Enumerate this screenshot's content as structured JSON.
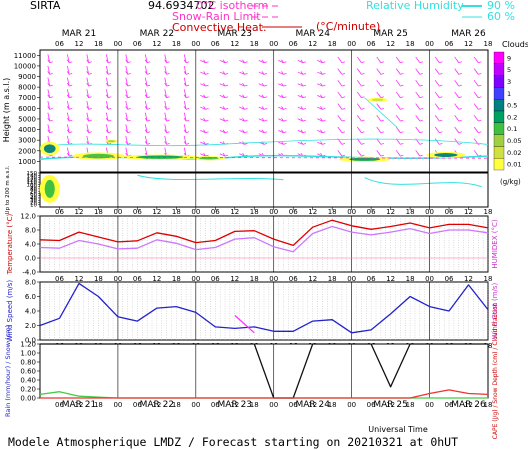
{
  "header": {
    "site": "SIRTA",
    "coords": "94.6934702",
    "legend_left": [
      {
        "label": "0°C isotherm",
        "color": "#ff33cc",
        "style": "--"
      },
      {
        "label": "Snow-Rain Limit",
        "color": "#ff33cc",
        "style": "--"
      },
      {
        "label": "Convective Heat.",
        "color": "#cc0000",
        "style": "solid"
      },
      {
        "label": "(°C/minute)",
        "color": "#cc0000",
        "style": ""
      }
    ],
    "legend_right": [
      {
        "label": "Relative Humidity",
        "value": "90 %",
        "color": "#33e0e0"
      },
      {
        "label": "",
        "value": "60 %",
        "color": "#33e0e0"
      }
    ]
  },
  "footer": {
    "title": "Modele Atmospherique LMDZ / Forecast starting on 20210321 at 0hUT",
    "xlabel": "Universal Time"
  },
  "time_axis": {
    "days": [
      "MAR 21",
      "MAR 22",
      "MAR 23",
      "MAR 24",
      "MAR 25",
      "MAR 26"
    ],
    "hour_ticks": [
      "06",
      "12",
      "18",
      "00"
    ],
    "start_hour": 0,
    "end_hour": 138
  },
  "colorbar": {
    "title": "Clouds",
    "unit": "(g/kg)",
    "labels": [
      "9",
      "5",
      "3",
      "1",
      "0.5",
      "0.2",
      "0.1",
      "0.05",
      "0.02",
      "0.01"
    ],
    "colors": [
      "#ff00ff",
      "#c000ff",
      "#8000ff",
      "#4040ff",
      "#008080",
      "#00a060",
      "#40c040",
      "#a0d040",
      "#d0e040",
      "#ffff40"
    ]
  },
  "chart_data": [
    {
      "type": "heatmap",
      "name": "clouds_wind",
      "ylabel": "Height (m a.s.l.)",
      "yticks": [
        1000,
        2000,
        3000,
        4000,
        5000,
        6000,
        7000,
        8000,
        9000,
        10000,
        11000
      ],
      "ylim": [
        0,
        11500
      ],
      "cloud_blobs": [
        {
          "t": 3,
          "h": 2200,
          "dt": 3,
          "dh": 1300,
          "level": 0.5
        },
        {
          "t": 18,
          "h": 1500,
          "dt": 8,
          "dh": 700,
          "level": 0.1
        },
        {
          "t": 22,
          "h": 2900,
          "dt": 2,
          "dh": 300,
          "level": 0.05
        },
        {
          "t": 37,
          "h": 1400,
          "dt": 12,
          "dh": 500,
          "level": 0.2
        },
        {
          "t": 52,
          "h": 1300,
          "dt": 5,
          "dh": 400,
          "level": 0.1
        },
        {
          "t": 100,
          "h": 1200,
          "dt": 8,
          "dh": 500,
          "level": 0.2
        },
        {
          "t": 104,
          "h": 6800,
          "dt": 3,
          "dh": 400,
          "level": 0.02
        },
        {
          "t": 125,
          "h": 1600,
          "dt": 6,
          "dh": 600,
          "level": 0.5
        }
      ],
      "wind": "barbs-magenta"
    },
    {
      "type": "heatmap",
      "name": "low_level_clouds",
      "ylabel": "Up to 200 m a.s.l.",
      "yticks": [
        10,
        20,
        30,
        40,
        50,
        60,
        70,
        80,
        90,
        100,
        110,
        120,
        130,
        140,
        150
      ],
      "ylim": [
        0,
        150
      ]
    },
    {
      "type": "line",
      "name": "temperature",
      "ylabel": "Temperature (°C)",
      "ylabel_right": "HUMIDEX (°C)",
      "yticks": [
        "-4.0",
        "0.0",
        "4.0",
        "8.0",
        "12.0"
      ],
      "ylim": [
        -4,
        12
      ],
      "x": [
        0,
        6,
        12,
        18,
        24,
        30,
        36,
        42,
        48,
        54,
        60,
        66,
        72,
        78,
        84,
        90,
        96,
        102,
        108,
        114,
        120,
        126,
        132,
        138
      ],
      "series": [
        {
          "name": "Temperature",
          "color": "#dd0000",
          "values": [
            5.2,
            5.0,
            7.4,
            6.0,
            4.6,
            4.9,
            7.2,
            6.2,
            4.4,
            5.0,
            7.6,
            7.8,
            5.4,
            3.6,
            8.8,
            10.8,
            9.2,
            8.2,
            9.0,
            10.0,
            8.6,
            9.6,
            9.6,
            8.6
          ]
        },
        {
          "name": "Humidex",
          "color": "#cc77ff",
          "values": [
            3.0,
            2.8,
            5.0,
            4.0,
            2.6,
            2.8,
            5.2,
            4.2,
            2.4,
            3.0,
            5.4,
            5.8,
            3.2,
            1.8,
            7.0,
            9.0,
            7.4,
            6.6,
            7.4,
            8.4,
            7.0,
            8.0,
            8.0,
            7.2
          ]
        }
      ]
    },
    {
      "type": "line",
      "name": "wind_speed",
      "ylabel": "Wind Speed (m/s)",
      "ylabel_right": "Wind Gust (m/s)",
      "yticks": [
        "0.0",
        "2.0",
        "4.0",
        "6.0",
        "8.0"
      ],
      "ylim": [
        0,
        8
      ],
      "x": [
        0,
        6,
        12,
        18,
        24,
        30,
        36,
        42,
        48,
        54,
        60,
        66,
        72,
        78,
        84,
        90,
        96,
        102,
        108,
        114,
        120,
        126,
        132,
        138
      ],
      "series": [
        {
          "name": "Wind Speed",
          "color": "#2222cc",
          "values": [
            2.0,
            3.0,
            7.8,
            6.0,
            3.2,
            2.6,
            4.4,
            4.6,
            3.8,
            1.8,
            1.6,
            1.8,
            1.2,
            1.2,
            2.6,
            2.8,
            1.0,
            1.4,
            3.6,
            6.0,
            4.6,
            4.0,
            7.6,
            4.2
          ]
        },
        {
          "name": "Wind Gust",
          "color": "#ff33ff",
          "values": [
            null,
            null,
            null,
            null,
            null,
            null,
            null,
            null,
            null,
            null,
            3.4,
            1.0,
            null,
            null,
            null,
            null,
            null,
            null,
            null,
            null,
            null,
            null,
            null,
            null
          ]
        }
      ]
    },
    {
      "type": "line",
      "name": "precip_snow",
      "ylabel": "Rain (mm/hour) / Snow (cm)",
      "ylabel_right": "CAPE (J/g) / Snow Depth (cm) / Cloud Fraction",
      "yticks": [
        "0.00",
        "0.20",
        "0.40",
        "0.60",
        "0.80",
        "1.00",
        "1.20"
      ],
      "ylim": [
        0,
        1.2
      ],
      "x": [
        0,
        6,
        12,
        18,
        24,
        30,
        36,
        42,
        48,
        54,
        60,
        66,
        72,
        78,
        84,
        90,
        96,
        102,
        108,
        114,
        120,
        126,
        132,
        138
      ],
      "series": [
        {
          "name": "Rain",
          "color": "#44cc44",
          "values": [
            0.08,
            0.14,
            0.04,
            0.02,
            0.0,
            0.0,
            0.0,
            0.0,
            0.0,
            0.0,
            0.0,
            0.0,
            0.0,
            0.0,
            0.0,
            0.0,
            0.0,
            0.0,
            0.0,
            0.0,
            0.0,
            0.0,
            0.0,
            0.0
          ]
        },
        {
          "name": "Cloud Fraction",
          "color": "#111111",
          "values": [
            1.2,
            1.2,
            1.2,
            1.2,
            1.2,
            1.2,
            1.2,
            1.2,
            1.2,
            1.2,
            1.2,
            1.2,
            0.0,
            0.0,
            1.2,
            1.2,
            1.2,
            1.2,
            0.25,
            1.2,
            1.2,
            1.2,
            1.2,
            1.2
          ]
        },
        {
          "name": "CAPE",
          "color": "#ee3333",
          "values": [
            0,
            0,
            0,
            0,
            0,
            0,
            0,
            0,
            0,
            0,
            0,
            0,
            0,
            0,
            0,
            0,
            0,
            0,
            0,
            0,
            0.1,
            0.18,
            0.1,
            0.08
          ]
        }
      ]
    }
  ]
}
